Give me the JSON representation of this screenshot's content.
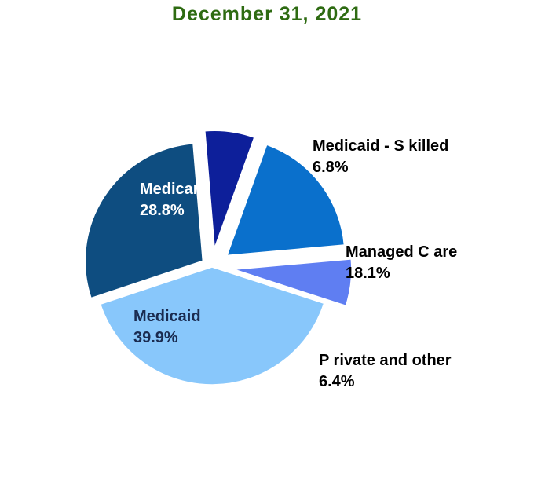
{
  "title": "December 31, 2021",
  "colors": {
    "title": "#2e6b12"
  },
  "chart_data": {
    "type": "pie",
    "title": "December 31, 2021",
    "slices": [
      {
        "label": "Medicare",
        "value_label": "28.8%",
        "value": 28.8,
        "color": "#0e4d80",
        "label_color": "#ffffff",
        "label_position": "inside"
      },
      {
        "label": "Medicaid - S killed",
        "value_label": "6.8%",
        "value": 6.8,
        "color": "#0d1f9a",
        "label_color": "#000000",
        "label_position": "outside"
      },
      {
        "label": "Managed C are",
        "value_label": "18.1%",
        "value": 18.1,
        "color": "#0a70cc",
        "label_color": "#000000",
        "label_position": "outside"
      },
      {
        "label": "P rivate and other",
        "value_label": "6.4%",
        "value": 6.4,
        "color": "#5f7ef2",
        "label_color": "#000000",
        "label_position": "outside"
      },
      {
        "label": "Medicaid",
        "value_label": "39.9%",
        "value": 39.9,
        "color": "#88c7fb",
        "label_color": "#1a2b50",
        "label_position": "inside"
      }
    ]
  }
}
